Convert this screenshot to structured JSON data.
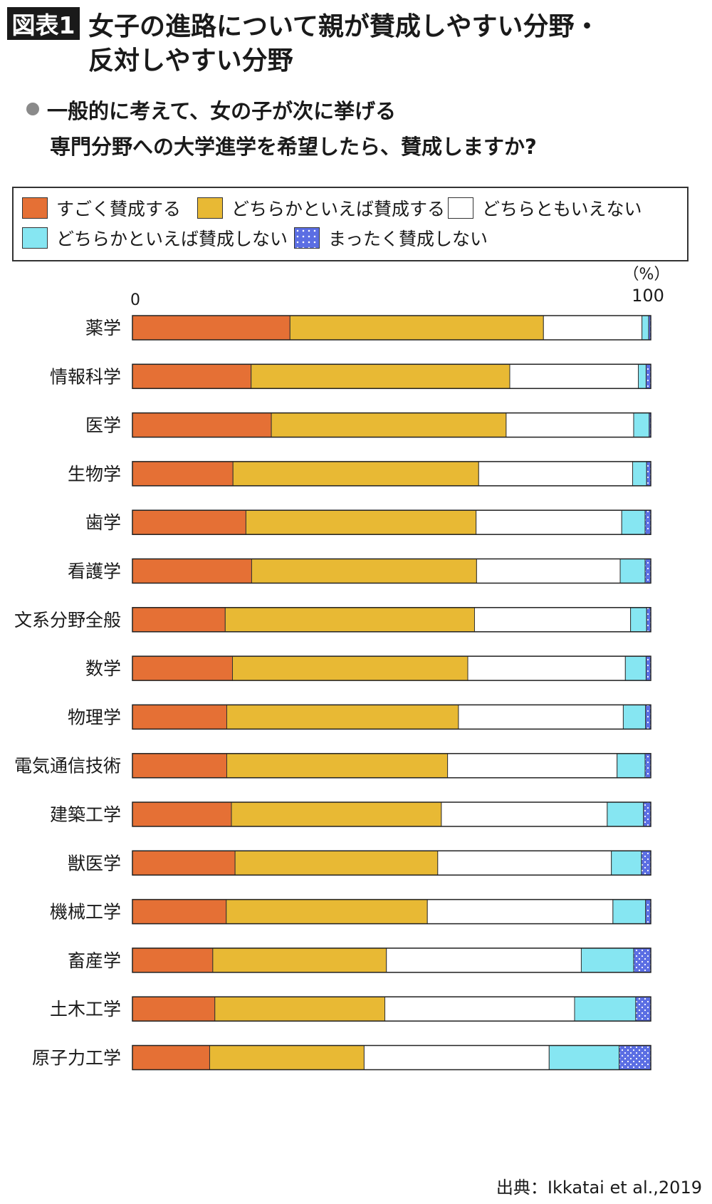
{
  "badge": "図表1",
  "title": {
    "line1": "女子の進路について親が賛成しやすい分野・",
    "line2": "反対しやすい分野"
  },
  "question": {
    "line1": "一般的に考えて、女の子が次に挙げる",
    "line2": "専門分野への大学進学を希望したら、賛成しますか?"
  },
  "source": "出典：Ikkatai et al.,2019",
  "chart_data": {
    "type": "bar",
    "orientation": "horizontal",
    "stacked": true,
    "percent_unit": "（%）",
    "axis_min_label": "0",
    "axis_max_label": "100",
    "xlim": [
      0,
      100
    ],
    "legend_position": "top",
    "categories": [
      "薬学",
      "情報科学",
      "医学",
      "生物学",
      "歯学",
      "看護学",
      "文系分野全般",
      "数学",
      "物理学",
      "電気通信技術",
      "建築工学",
      "獣医学",
      "機械工学",
      "畜産学",
      "土木工学",
      "原子力工学"
    ],
    "series": [
      {
        "name": "すごく賛成する",
        "color": "#e57035",
        "pattern": "solid",
        "values": [
          30.4,
          22.9,
          26.8,
          19.4,
          21.9,
          23.0,
          17.9,
          19.3,
          18.2,
          18.2,
          19.1,
          19.8,
          18.1,
          15.5,
          15.9,
          14.9
        ]
      },
      {
        "name": "どちらかといえば賛成する",
        "color": "#e8b934",
        "pattern": "solid",
        "values": [
          48.9,
          49.9,
          45.3,
          47.4,
          44.4,
          43.4,
          48.1,
          45.4,
          44.7,
          42.6,
          40.5,
          39.1,
          38.8,
          33.5,
          32.8,
          29.8
        ]
      },
      {
        "name": "どちらともいえない",
        "color": "#ffffff",
        "pattern": "solid",
        "values": [
          19.0,
          24.8,
          24.6,
          29.7,
          28.1,
          27.7,
          30.1,
          30.4,
          31.8,
          32.7,
          32.0,
          33.5,
          35.8,
          37.6,
          36.6,
          35.7
        ]
      },
      {
        "name": "どちらかといえば賛成しない",
        "color": "#86e6f2",
        "pattern": "solid",
        "values": [
          1.3,
          1.5,
          3.0,
          2.7,
          4.5,
          4.8,
          3.1,
          4.0,
          4.3,
          5.4,
          7.0,
          5.8,
          6.3,
          10.1,
          11.8,
          13.5
        ]
      },
      {
        "name": "まったく賛成しない",
        "color": "#5b6ee3",
        "pattern": "dotted",
        "values": [
          0.4,
          0.9,
          0.3,
          0.8,
          1.1,
          1.1,
          0.8,
          0.9,
          1.0,
          1.1,
          1.4,
          1.8,
          1.0,
          3.3,
          2.9,
          6.1
        ]
      }
    ]
  }
}
